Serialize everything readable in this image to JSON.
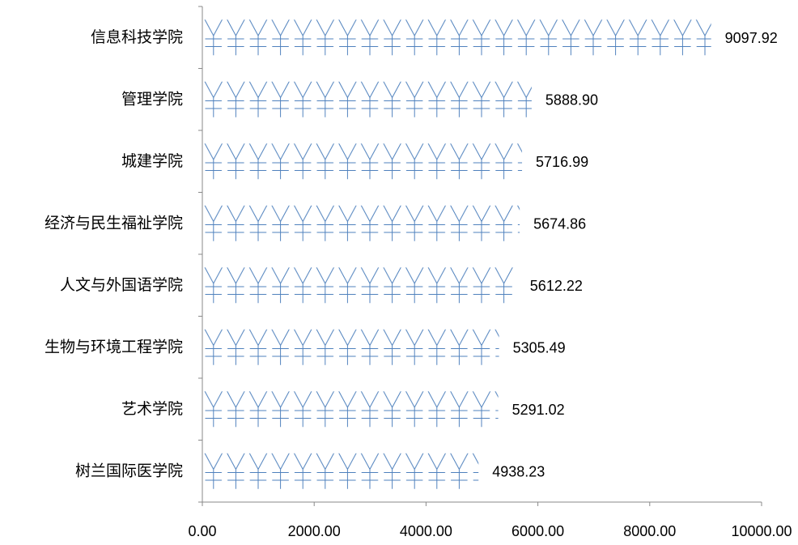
{
  "chart_data": {
    "type": "bar",
    "orientation": "horizontal",
    "categories": [
      "信息科技学院",
      "管理学院",
      "城建学院",
      "经济与民生福祉学院",
      "人文与外国语学院",
      "生物与环境工程学院",
      "艺术学院",
      "树兰国际医学院"
    ],
    "values": [
      9097.92,
      5888.9,
      5716.99,
      5674.86,
      5612.22,
      5305.49,
      5291.02,
      4938.23
    ],
    "value_labels": [
      "9097.92",
      "5888.90",
      "5716.99",
      "5674.86",
      "5612.22",
      "5305.49",
      "5291.02",
      "4938.23"
    ],
    "color": "#4f81bd",
    "xlim": [
      0,
      10000
    ],
    "xticks": [
      {
        "value": 0,
        "label": "0.00"
      },
      {
        "value": 2000,
        "label": "2000.00"
      },
      {
        "value": 4000,
        "label": "4000.00"
      },
      {
        "value": 6000,
        "label": "6000.00"
      },
      {
        "value": 8000,
        "label": "8000.00"
      },
      {
        "value": 10000,
        "label": "10000.00"
      }
    ]
  }
}
